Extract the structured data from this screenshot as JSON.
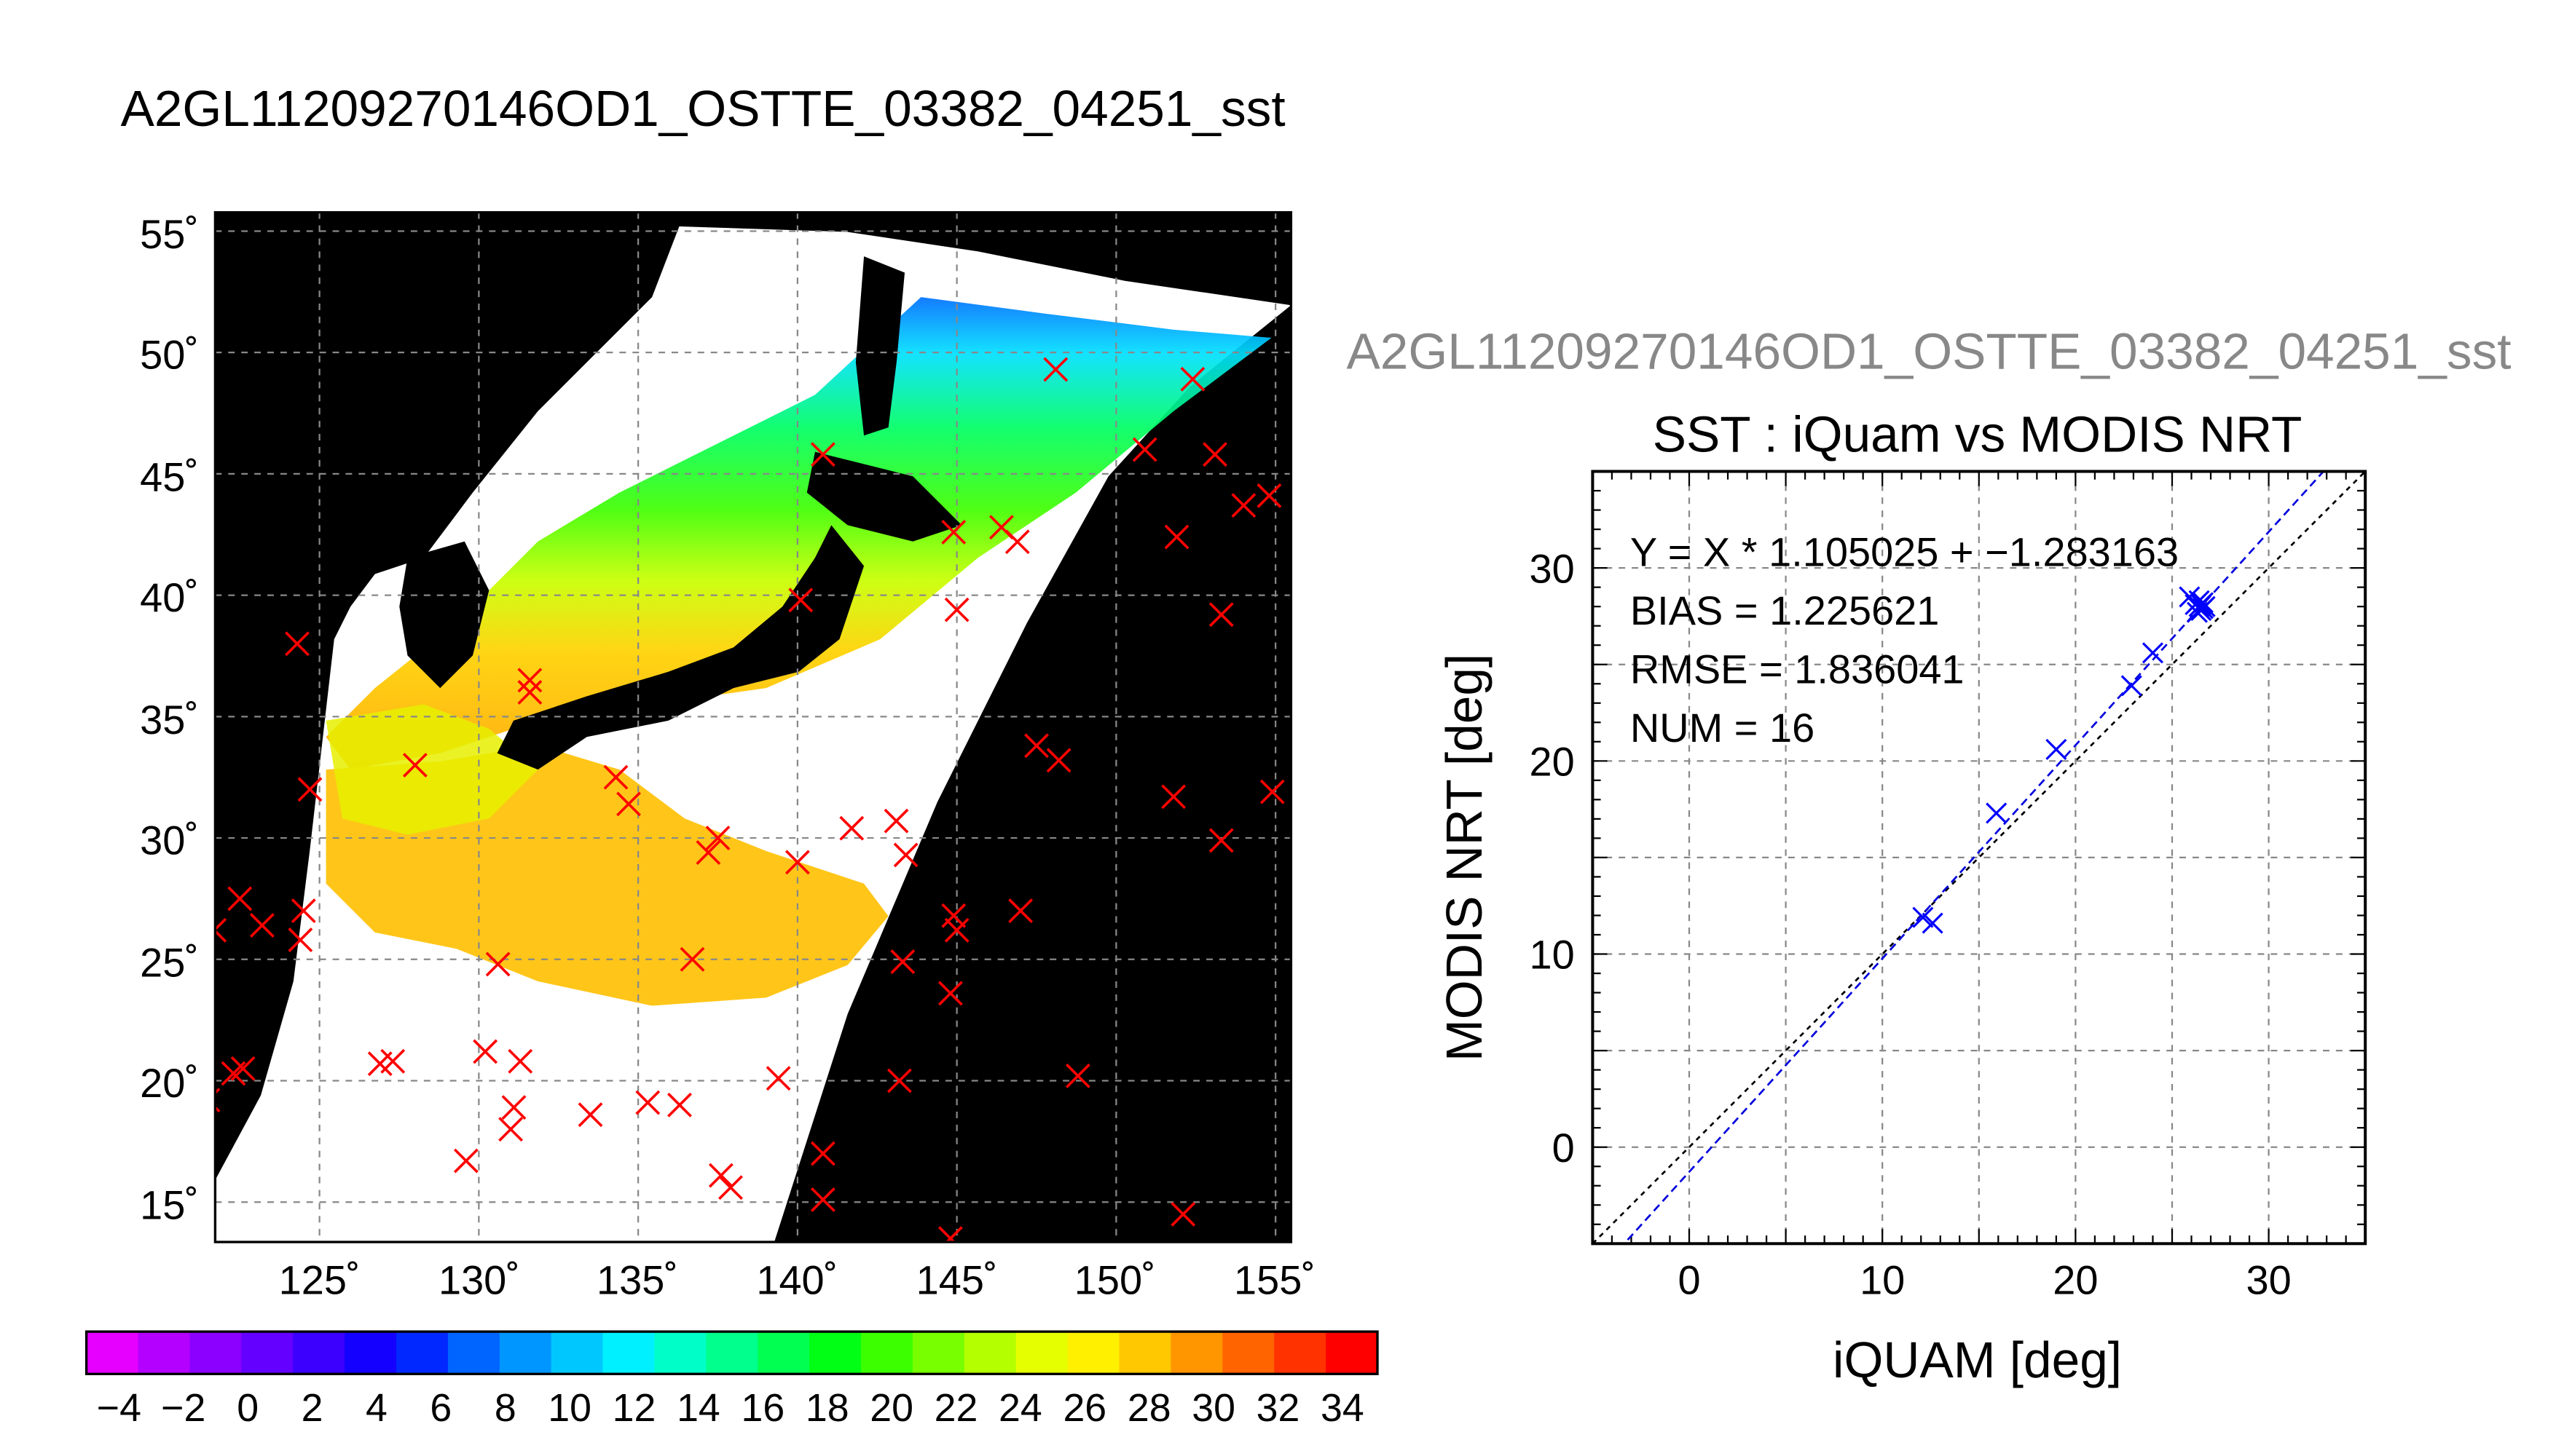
{
  "figure": {
    "main_title": "A2GL11209270146OD1_OSTTE_03382_04251_sst",
    "scatter_title_overflow": "A2GL11209270146OD1_OSTTE_03382_04251_sst"
  },
  "map": {
    "lon_ticks": [
      "125˚",
      "130˚",
      "135˚",
      "140˚",
      "145˚",
      "150˚",
      "155˚"
    ],
    "lat_ticks": [
      "55˚",
      "50˚",
      "45˚",
      "40˚",
      "35˚",
      "30˚",
      "25˚",
      "20˚",
      "15˚"
    ],
    "colorbar_labels": [
      "−4",
      "−2",
      "0",
      "2",
      "4",
      "6",
      "8",
      "10",
      "12",
      "14",
      "16",
      "18",
      "20",
      "22",
      "24",
      "26",
      "28",
      "30",
      "32",
      "34"
    ],
    "colorbar_colors": [
      "#e600ff",
      "#b400ff",
      "#8c00ff",
      "#6400ff",
      "#3c00ff",
      "#1400ff",
      "#0028ff",
      "#0064ff",
      "#0096ff",
      "#00c8ff",
      "#00f0ff",
      "#00ffc8",
      "#00ff8c",
      "#00ff50",
      "#00ff14",
      "#3cff00",
      "#78ff00",
      "#b4ff00",
      "#e6ff00",
      "#fff000",
      "#ffc800",
      "#ff9600",
      "#ff6400",
      "#ff3200",
      "#ff0000"
    ],
    "matchups": [
      {
        "lon": 124.3,
        "lat": 38.0
      },
      {
        "lon": 124.7,
        "lat": 32.0
      },
      {
        "lon": 124.5,
        "lat": 27.0
      },
      {
        "lon": 124.4,
        "lat": 25.8
      },
      {
        "lon": 122.5,
        "lat": 27.5
      },
      {
        "lon": 121.7,
        "lat": 26.2
      },
      {
        "lon": 123.2,
        "lat": 26.4
      },
      {
        "lon": 122.3,
        "lat": 20.3
      },
      {
        "lon": 122.6,
        "lat": 20.5
      },
      {
        "lon": 121.5,
        "lat": 19.2
      },
      {
        "lon": 126.9,
        "lat": 20.7
      },
      {
        "lon": 127.3,
        "lat": 20.8
      },
      {
        "lon": 128.0,
        "lat": 33.0
      },
      {
        "lon": 130.6,
        "lat": 24.8
      },
      {
        "lon": 130.2,
        "lat": 21.2
      },
      {
        "lon": 131.3,
        "lat": 20.8
      },
      {
        "lon": 131.1,
        "lat": 18.9
      },
      {
        "lon": 131.0,
        "lat": 18.0
      },
      {
        "lon": 129.6,
        "lat": 16.7
      },
      {
        "lon": 133.5,
        "lat": 18.6
      },
      {
        "lon": 135.3,
        "lat": 19.1
      },
      {
        "lon": 136.3,
        "lat": 19.0
      },
      {
        "lon": 131.6,
        "lat": 36.0
      },
      {
        "lon": 131.6,
        "lat": 36.5
      },
      {
        "lon": 134.3,
        "lat": 32.5
      },
      {
        "lon": 134.7,
        "lat": 31.4
      },
      {
        "lon": 136.7,
        "lat": 25.0
      },
      {
        "lon": 137.2,
        "lat": 29.4
      },
      {
        "lon": 137.5,
        "lat": 30.0
      },
      {
        "lon": 137.6,
        "lat": 16.1
      },
      {
        "lon": 137.9,
        "lat": 15.6
      },
      {
        "lon": 139.4,
        "lat": 20.1
      },
      {
        "lon": 140.0,
        "lat": 29.0
      },
      {
        "lon": 140.1,
        "lat": 39.8
      },
      {
        "lon": 140.8,
        "lat": 45.8
      },
      {
        "lon": 140.8,
        "lat": 17.0
      },
      {
        "lon": 140.8,
        "lat": 15.1
      },
      {
        "lon": 141.7,
        "lat": 30.4
      },
      {
        "lon": 143.1,
        "lat": 30.7
      },
      {
        "lon": 143.4,
        "lat": 29.3
      },
      {
        "lon": 143.3,
        "lat": 24.9
      },
      {
        "lon": 143.2,
        "lat": 20.0
      },
      {
        "lon": 144.9,
        "lat": 42.6
      },
      {
        "lon": 145.0,
        "lat": 39.4
      },
      {
        "lon": 144.9,
        "lat": 26.8
      },
      {
        "lon": 145.0,
        "lat": 26.2
      },
      {
        "lon": 144.8,
        "lat": 23.6
      },
      {
        "lon": 144.8,
        "lat": 13.5
      },
      {
        "lon": 146.4,
        "lat": 42.8
      },
      {
        "lon": 146.9,
        "lat": 42.2
      },
      {
        "lon": 147.0,
        "lat": 27.0
      },
      {
        "lon": 147.5,
        "lat": 33.8
      },
      {
        "lon": 148.2,
        "lat": 33.2
      },
      {
        "lon": 148.1,
        "lat": 49.3
      },
      {
        "lon": 148.8,
        "lat": 20.2
      },
      {
        "lon": 150.9,
        "lat": 46.0
      },
      {
        "lon": 151.8,
        "lat": 31.7
      },
      {
        "lon": 151.9,
        "lat": 42.4
      },
      {
        "lon": 152.1,
        "lat": 14.5
      },
      {
        "lon": 152.4,
        "lat": 48.9
      },
      {
        "lon": 153.1,
        "lat": 45.8
      },
      {
        "lon": 153.3,
        "lat": 39.2
      },
      {
        "lon": 153.3,
        "lat": 29.9
      },
      {
        "lon": 154.0,
        "lat": 43.7
      },
      {
        "lon": 154.8,
        "lat": 44.1
      },
      {
        "lon": 154.9,
        "lat": 31.9
      }
    ]
  },
  "chart_data": {
    "type": "scatter",
    "title": "SST : iQuam vs MODIS NRT",
    "xlabel": "iQUAM [deg]",
    "ylabel": "MODIS NRT [deg]",
    "xlim": [
      -5,
      35
    ],
    "ylim": [
      -5,
      35
    ],
    "x_ticks": [
      "0",
      "10",
      "20",
      "30"
    ],
    "y_ticks": [
      "0",
      "10",
      "20",
      "30"
    ],
    "grid": true,
    "annotations": [
      "Y = X * 1.105025 + −1.283163",
      "BIAS = 1.225621",
      "RMSE = 1.836041",
      "NUM = 16"
    ],
    "fit_line": {
      "slope": 1.105025,
      "intercept": -1.283163,
      "color": "#0000dd"
    },
    "identity_line": {
      "color": "#000000"
    },
    "point_color": "#0000ff",
    "points": [
      {
        "x": 12.1,
        "y": 11.9
      },
      {
        "x": 12.6,
        "y": 11.6
      },
      {
        "x": 15.9,
        "y": 17.3
      },
      {
        "x": 19.0,
        "y": 20.6
      },
      {
        "x": 22.9,
        "y": 23.9
      },
      {
        "x": 24.0,
        "y": 25.6
      },
      {
        "x": 25.9,
        "y": 28.5
      },
      {
        "x": 26.4,
        "y": 28.0
      },
      {
        "x": 26.6,
        "y": 27.9
      },
      {
        "x": 26.5,
        "y": 28.1
      },
      {
        "x": 26.3,
        "y": 27.7
      },
      {
        "x": 26.6,
        "y": 28.2
      },
      {
        "x": 26.4,
        "y": 28.3
      },
      {
        "x": 26.5,
        "y": 27.8
      },
      {
        "x": 26.7,
        "y": 28.0
      },
      {
        "x": 26.2,
        "y": 28.1
      }
    ]
  }
}
